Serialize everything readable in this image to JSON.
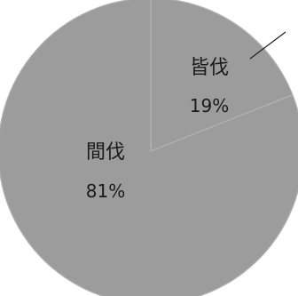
{
  "chart_data": {
    "type": "pie",
    "slices": [
      {
        "label": "皆伐",
        "value": 19,
        "value_label": "19%"
      },
      {
        "label": "間伐",
        "value": 81,
        "value_label": "81%"
      }
    ],
    "colors": {
      "slice_fill": "#9c9c9c",
      "slice_edge": "#b3b3b3",
      "leader": "#222222"
    },
    "legend": "none"
  }
}
